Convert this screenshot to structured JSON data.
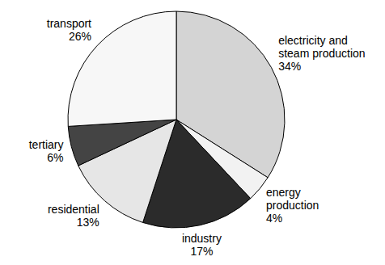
{
  "chart_data": {
    "type": "pie",
    "categories": [
      "electricity and steam production",
      "energy production",
      "industry",
      "residential",
      "tertiary",
      "transport"
    ],
    "values": [
      34,
      4,
      17,
      13,
      6,
      26
    ],
    "value_labels": [
      "34%",
      "4%",
      "17%",
      "13%",
      "6%",
      "26%"
    ],
    "colors": [
      "#d4d4d4",
      "#f2f2f2",
      "#2b2b2b",
      "#e6e6e6",
      "#444444",
      "#f7f7f7"
    ],
    "data_labels": true
  }
}
